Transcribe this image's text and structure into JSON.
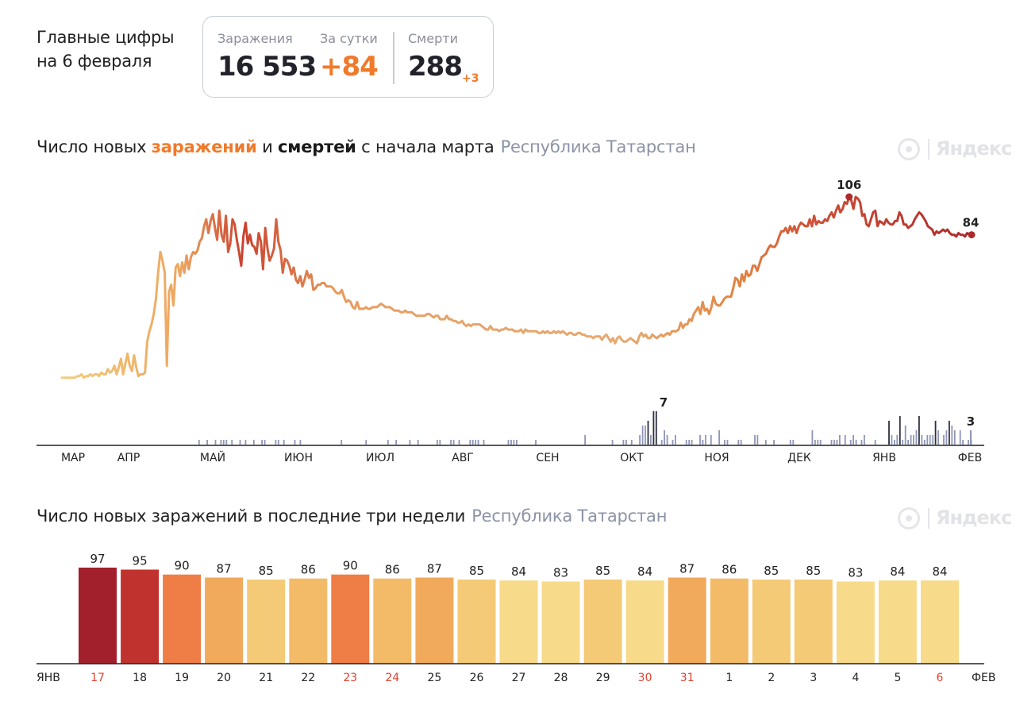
{
  "header": {
    "title_line1": "Главные цифры",
    "title_line2": "на 6 февраля",
    "infections_label": "Заражения",
    "infections_value": "16 553",
    "daily_label": "За сутки",
    "daily_value": "+84",
    "deaths_label": "Смерти",
    "deaths_value": "288",
    "deaths_delta": "+3"
  },
  "chart1": {
    "title_part1": "Число новых ",
    "title_infections": "заражений",
    "title_and": " и ",
    "title_deaths": "смертей",
    "title_part2": " с начала марта",
    "region": "Республика Татарстан"
  },
  "chart2": {
    "title": "Число новых заражений в последние три недели",
    "region": "Республика Татарстан"
  },
  "brand": "Яндекс",
  "colors": {
    "accent_orange": "#f07a2b",
    "low_yellow": "#f7d98a",
    "high_red": "#a21f2c",
    "death_bars": "#8f96b8"
  },
  "chart_data": [
    {
      "type": "line",
      "series": [
        {
          "values": [
            1,
            1,
            1,
            1,
            1,
            1,
            1,
            2,
            2,
            3,
            1,
            2,
            2,
            3,
            2,
            3,
            3,
            2,
            4,
            3,
            3,
            6,
            4,
            5,
            8,
            3,
            7,
            12,
            3,
            9,
            15,
            8,
            5,
            14,
            7,
            2,
            3,
            3,
            4,
            22,
            28,
            32,
            38,
            47,
            62,
            74,
            69,
            62,
            8,
            51,
            55,
            43,
            65,
            67,
            60,
            68,
            62,
            72,
            64,
            71,
            74,
            73,
            75,
            80,
            82,
            89,
            93,
            85,
            92,
            96,
            88,
            81,
            98,
            84,
            80,
            95,
            74,
            79,
            93,
            90,
            81,
            74,
            66,
            83,
            91,
            79,
            84,
            78,
            77,
            73,
            85,
            80,
            64,
            88,
            76,
            69,
            72,
            76,
            93,
            80,
            75,
            62,
            70,
            69,
            66,
            61,
            65,
            58,
            56,
            60,
            54,
            58,
            63,
            59,
            61,
            52,
            53,
            55,
            55,
            56,
            56,
            54,
            54,
            54,
            53,
            51,
            50,
            50,
            52,
            48,
            45,
            46,
            45,
            42,
            41,
            45,
            41,
            41,
            41,
            42,
            41,
            41,
            42,
            42,
            42,
            43,
            44,
            43,
            42,
            42,
            42,
            41,
            40,
            40,
            40,
            39,
            39,
            40,
            39,
            39,
            39,
            38,
            37,
            37,
            37,
            37,
            37,
            38,
            38,
            37,
            36,
            37,
            37,
            35,
            35,
            35,
            37,
            35,
            35,
            34,
            34,
            33,
            33,
            34,
            32,
            31,
            32,
            31,
            32,
            32,
            32,
            32,
            31,
            30,
            29,
            29,
            31,
            29,
            29,
            29,
            28,
            29,
            29,
            30,
            29,
            29,
            29,
            28,
            28,
            28,
            29,
            27,
            29,
            28,
            28,
            28,
            28,
            28,
            27,
            27,
            28,
            27,
            28,
            27,
            27,
            28,
            27,
            28,
            27,
            28,
            27,
            26,
            27,
            27,
            26,
            26,
            27,
            27,
            26,
            26,
            25,
            25,
            25,
            24,
            25,
            25,
            25,
            23,
            25,
            26,
            24,
            22,
            24,
            21,
            24,
            25,
            23,
            22,
            22,
            23,
            24,
            23,
            22,
            21,
            25,
            27,
            25,
            26,
            24,
            24,
            26,
            25,
            24,
            25,
            26,
            25,
            26,
            27,
            26,
            28,
            28,
            28,
            29,
            33,
            30,
            32,
            32,
            35,
            34,
            38,
            40,
            42,
            38,
            45,
            40,
            41,
            38,
            42,
            48,
            44,
            43,
            43,
            45,
            47,
            48,
            48,
            48,
            53,
            59,
            58,
            54,
            61,
            57,
            63,
            60,
            61,
            66,
            66,
            63,
            67,
            71,
            72,
            73,
            76,
            78,
            77,
            77,
            79,
            83,
            86,
            86,
            88,
            85,
            89,
            86,
            89,
            85,
            89,
            91,
            90,
            89,
            89,
            93,
            89,
            95,
            90,
            92,
            91,
            91,
            93,
            92,
            95,
            97,
            94,
            98,
            101,
            97,
            99,
            103,
            102,
            106,
            104,
            99,
            106,
            105,
            103,
            95,
            96,
            90,
            89,
            93,
            97,
            98,
            89,
            92,
            91,
            90,
            93,
            91,
            90,
            90,
            92,
            92,
            97,
            95,
            90,
            90,
            88,
            89,
            90,
            93,
            95,
            97,
            96,
            94,
            92,
            89,
            88,
            87,
            84,
            86,
            85,
            86,
            87,
            86,
            87,
            85,
            84,
            84,
            83,
            85,
            84,
            84,
            83,
            85,
            84,
            84
          ],
          "color": "gradient yellow-orange-red"
        }
      ],
      "labels": {
        "peak": "106",
        "last": "84"
      },
      "deaths_bars": {
        "last_label": "3",
        "oct_peak_label": "7"
      },
      "xlabels": [
        "МАР",
        "АПР",
        "МАЙ",
        "ИЮН",
        "ИЮЛ",
        "АВГ",
        "СЕН",
        "ОКТ",
        "НОЯ",
        "ДЕК",
        "ЯНВ",
        "ФЕВ"
      ]
    },
    {
      "type": "bar",
      "categories": [
        "17",
        "18",
        "19",
        "20",
        "21",
        "22",
        "23",
        "24",
        "25",
        "26",
        "27",
        "28",
        "29",
        "30",
        "31",
        "1",
        "2",
        "3",
        "4",
        "5",
        "6"
      ],
      "values": [
        97,
        95,
        90,
        87,
        85,
        86,
        90,
        86,
        87,
        85,
        84,
        83,
        85,
        84,
        87,
        86,
        85,
        85,
        83,
        84,
        84
      ],
      "highlighted_dates": [
        "17",
        "23",
        "24",
        "30",
        "31",
        "6"
      ],
      "xlabel_left": "ЯНВ",
      "xlabel_right": "ФЕВ"
    }
  ]
}
